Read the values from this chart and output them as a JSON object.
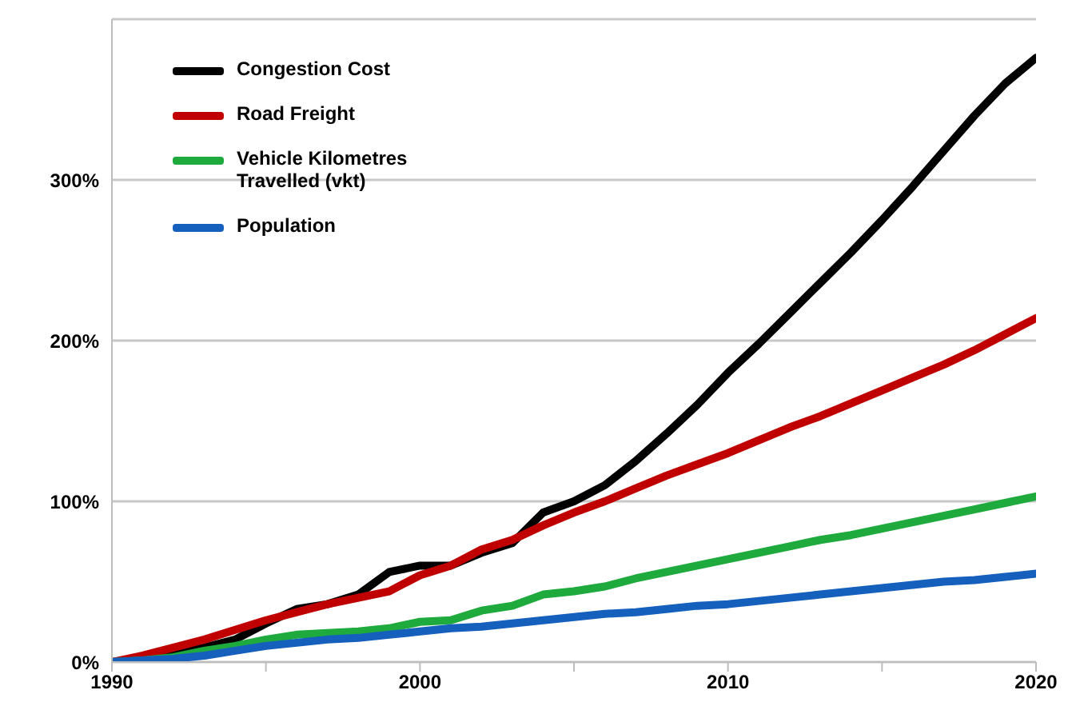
{
  "chart_data": {
    "type": "line",
    "x": [
      1990,
      1991,
      1992,
      1993,
      1994,
      1995,
      1996,
      1997,
      1998,
      1999,
      2000,
      2001,
      2002,
      2003,
      2004,
      2005,
      2006,
      2007,
      2008,
      2009,
      2010,
      2011,
      2012,
      2013,
      2014,
      2015,
      2016,
      2017,
      2018,
      2019,
      2020
    ],
    "series": [
      {
        "name": "Congestion Cost",
        "color": "#000000",
        "values": [
          0,
          2,
          5,
          9,
          14,
          24,
          33,
          36,
          42,
          56,
          60,
          60,
          68,
          74,
          93,
          100,
          110,
          125,
          142,
          160,
          180,
          198,
          217,
          236,
          255,
          275,
          296,
          318,
          340,
          360,
          376
        ]
      },
      {
        "name": "Road Freight",
        "color": "#c00000",
        "values": [
          0,
          4,
          9,
          14,
          20,
          26,
          31,
          36,
          40,
          44,
          54,
          60,
          70,
          76,
          85,
          93,
          100,
          108,
          116,
          123,
          130,
          138,
          146,
          153,
          161,
          169,
          177,
          185,
          194,
          204,
          214
        ]
      },
      {
        "name": "Vehicle Kilometres Travelled (vkt)",
        "color": "#1eaa3c",
        "values": [
          0,
          1,
          3,
          7,
          10,
          14,
          17,
          18,
          19,
          21,
          25,
          26,
          32,
          35,
          42,
          44,
          47,
          52,
          56,
          60,
          64,
          68,
          72,
          76,
          79,
          83,
          87,
          91,
          95,
          99,
          103
        ]
      },
      {
        "name": "Population",
        "color": "#1560bd",
        "values": [
          0,
          1,
          2,
          4,
          7,
          10,
          12,
          14,
          15,
          17,
          19,
          21,
          22,
          24,
          26,
          28,
          30,
          31,
          33,
          35,
          36,
          38,
          40,
          42,
          44,
          46,
          48,
          50,
          51,
          53,
          55
        ]
      }
    ],
    "xlim": [
      1990,
      2020
    ],
    "xticks": [
      1990,
      {
        "value": 1995,
        "label": null
      },
      2000,
      {
        "value": 2005,
        "label": null
      },
      2010,
      {
        "value": 2015,
        "label": null
      },
      2020
    ],
    "ylim": [
      0,
      400
    ],
    "yticks": [
      {
        "value": 0,
        "label": "0%"
      },
      {
        "value": 100,
        "label": "100%"
      },
      {
        "value": 200,
        "label": "200%"
      },
      {
        "value": 300,
        "label": "300%"
      }
    ],
    "grid": "y",
    "legend": "top left",
    "marker": "none",
    "line_style": "solid"
  }
}
